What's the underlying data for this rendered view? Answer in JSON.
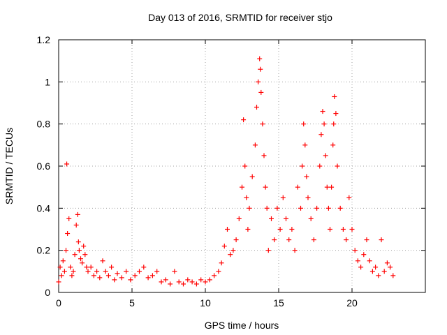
{
  "chart_data": {
    "type": "scatter",
    "title": "Day 013 of 2016, SRMTID for receiver stjo",
    "xlabel": "GPS time / hours",
    "ylabel": "SRMTID / TECUs",
    "xlim": [
      0,
      25
    ],
    "ylim": [
      0,
      1.2
    ],
    "xticks": [
      0,
      5,
      10,
      15,
      20
    ],
    "xtick_labels": [
      "0",
      "5",
      "10",
      "15",
      "20"
    ],
    "yticks": [
      0,
      0.2,
      0.4,
      0.6,
      0.8,
      1.0,
      1.2
    ],
    "ytick_labels": [
      "0",
      "0.2",
      "0.4",
      "0.6",
      "0.8",
      "1",
      "1.2"
    ],
    "grid": true,
    "marker": "+",
    "colors": {
      "marker": "#ff0000",
      "grid": "#a0a0a0",
      "axis": "#000000"
    },
    "series": [
      {
        "name": "SRMTID",
        "x": [
          0.0,
          0.1,
          0.2,
          0.3,
          0.4,
          0.5,
          0.55,
          0.6,
          0.7,
          0.8,
          0.9,
          1.0,
          1.1,
          1.2,
          1.3,
          1.35,
          1.4,
          1.5,
          1.6,
          1.7,
          1.8,
          1.9,
          2.0,
          2.2,
          2.4,
          2.6,
          2.8,
          3.0,
          3.2,
          3.4,
          3.6,
          3.8,
          4.0,
          4.3,
          4.6,
          4.9,
          5.2,
          5.5,
          5.8,
          6.1,
          6.4,
          6.7,
          7.0,
          7.3,
          7.6,
          7.9,
          8.2,
          8.5,
          8.8,
          9.1,
          9.4,
          9.7,
          10.0,
          10.3,
          10.6,
          10.9,
          11.1,
          11.3,
          11.5,
          11.7,
          11.9,
          12.1,
          12.3,
          12.5,
          12.6,
          12.7,
          12.8,
          12.9,
          13.0,
          13.2,
          13.4,
          13.5,
          13.6,
          13.7,
          13.75,
          13.8,
          13.9,
          14.0,
          14.1,
          14.2,
          14.3,
          14.5,
          14.7,
          14.9,
          15.1,
          15.3,
          15.5,
          15.7,
          15.9,
          16.1,
          16.3,
          16.5,
          16.6,
          16.7,
          16.8,
          16.9,
          17.0,
          17.2,
          17.4,
          17.6,
          17.8,
          17.9,
          18.0,
          18.1,
          18.2,
          18.3,
          18.4,
          18.5,
          18.6,
          18.7,
          18.75,
          18.8,
          18.9,
          19.0,
          19.2,
          19.4,
          19.6,
          19.8,
          20.0,
          20.2,
          20.4,
          20.6,
          20.8,
          21.0,
          21.2,
          21.4,
          21.6,
          21.8,
          22.0,
          22.2,
          22.4,
          22.6,
          22.8
        ],
        "y": [
          0.05,
          0.12,
          0.08,
          0.15,
          0.1,
          0.2,
          0.61,
          0.28,
          0.35,
          0.12,
          0.08,
          0.1,
          0.18,
          0.32,
          0.37,
          0.24,
          0.2,
          0.16,
          0.14,
          0.22,
          0.18,
          0.12,
          0.1,
          0.12,
          0.08,
          0.1,
          0.07,
          0.15,
          0.1,
          0.08,
          0.12,
          0.06,
          0.09,
          0.07,
          0.1,
          0.06,
          0.08,
          0.1,
          0.12,
          0.07,
          0.08,
          0.1,
          0.05,
          0.06,
          0.04,
          0.1,
          0.05,
          0.04,
          0.06,
          0.05,
          0.04,
          0.06,
          0.05,
          0.06,
          0.08,
          0.1,
          0.14,
          0.22,
          0.3,
          0.18,
          0.2,
          0.25,
          0.35,
          0.5,
          0.82,
          0.6,
          0.45,
          0.3,
          0.4,
          0.55,
          0.7,
          0.88,
          1.0,
          1.11,
          1.06,
          0.95,
          0.8,
          0.65,
          0.5,
          0.4,
          0.2,
          0.35,
          0.25,
          0.4,
          0.3,
          0.45,
          0.35,
          0.25,
          0.3,
          0.2,
          0.5,
          0.4,
          0.6,
          0.8,
          0.7,
          0.55,
          0.45,
          0.35,
          0.25,
          0.4,
          0.6,
          0.75,
          0.86,
          0.8,
          0.65,
          0.5,
          0.4,
          0.3,
          0.5,
          0.7,
          0.8,
          0.93,
          0.85,
          0.6,
          0.4,
          0.3,
          0.25,
          0.45,
          0.3,
          0.2,
          0.15,
          0.12,
          0.18,
          0.25,
          0.15,
          0.1,
          0.12,
          0.08,
          0.25,
          0.1,
          0.14,
          0.12,
          0.08
        ]
      }
    ]
  }
}
